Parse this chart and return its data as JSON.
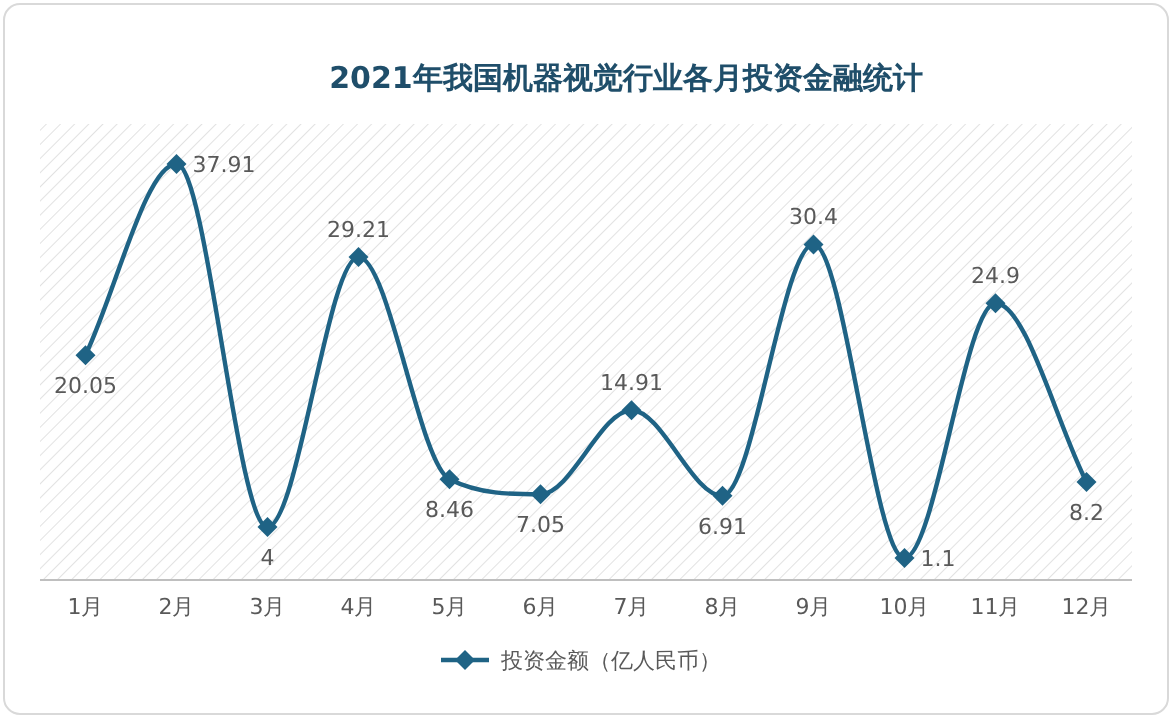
{
  "chart_data": {
    "type": "line",
    "title": "2021年我国机器视觉行业各月投资金融统计",
    "categories": [
      "1月",
      "2月",
      "3月",
      "4月",
      "5月",
      "6月",
      "7月",
      "8月",
      "9月",
      "10月",
      "11月",
      "12月"
    ],
    "series": [
      {
        "name": "投资金额（亿人民币）",
        "color": "#1f6385",
        "values": [
          20.05,
          37.91,
          4,
          29.21,
          8.46,
          7.05,
          14.91,
          6.91,
          30.4,
          1.1,
          24.9,
          8.2
        ]
      }
    ],
    "relative": false,
    "data_labels": true,
    "marker": "diamond",
    "line_style": "solid",
    "legend": "bottom",
    "grid": false
  }
}
